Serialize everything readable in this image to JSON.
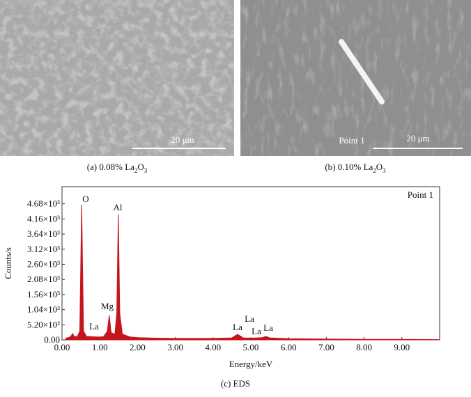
{
  "panel_a": {
    "scale_bar": "20 μm",
    "caption": [
      "(a) 0.08% La",
      "2",
      "O",
      "3"
    ]
  },
  "panel_b": {
    "point_label": "Point 1",
    "scale_bar": "20 μm",
    "caption": [
      "(b) 0.10% La",
      "2",
      "O",
      "3"
    ]
  },
  "chart_data": {
    "type": "area",
    "caption": "(c) EDS",
    "annotation": "Point 1",
    "x_label": "Energy/keV",
    "y_label": "Counts/s",
    "peak_labels": [
      "O",
      "Al",
      "Mg",
      "La",
      "La",
      "La",
      "La",
      "La"
    ],
    "xlim": [
      0,
      10
    ],
    "xticks": [
      {
        "value": 0,
        "label": "0.00"
      },
      {
        "value": 1,
        "label": "1.00"
      },
      {
        "value": 2,
        "label": "2.00"
      },
      {
        "value": 3,
        "label": "3.00"
      },
      {
        "value": 4,
        "label": "4.00"
      },
      {
        "value": 5,
        "label": "5.00"
      },
      {
        "value": 6,
        "label": "6.00"
      },
      {
        "value": 7,
        "label": "7.00"
      },
      {
        "value": 8,
        "label": "8.00"
      },
      {
        "value": 9,
        "label": "9.00"
      }
    ],
    "ylim": [
      0,
      5270
    ],
    "yticks": [
      {
        "value": 0,
        "label": "0.00"
      },
      {
        "value": 520,
        "label": "5.20×10²"
      },
      {
        "value": 1040,
        "label": "1.04×10³"
      },
      {
        "value": 1560,
        "label": "1.56×10³"
      },
      {
        "value": 2080,
        "label": "2.08×10³"
      },
      {
        "value": 2600,
        "label": "2.60×10³"
      },
      {
        "value": 3120,
        "label": "3.12×10³"
      },
      {
        "value": 3640,
        "label": "3.64×10³"
      },
      {
        "value": 4160,
        "label": "4.16×10³"
      },
      {
        "value": 4680,
        "label": "4.68×10³"
      }
    ],
    "x": [
      0.1,
      0.2,
      0.25,
      0.28,
      0.31,
      0.4,
      0.47,
      0.52,
      0.57,
      0.65,
      0.8,
      0.9,
      1.0,
      1.1,
      1.2,
      1.25,
      1.3,
      1.4,
      1.45,
      1.49,
      1.53,
      1.6,
      1.8,
      2.0,
      2.5,
      3.0,
      3.5,
      4.0,
      4.5,
      4.6,
      4.65,
      4.7,
      4.8,
      5.0,
      5.3,
      5.4,
      5.5,
      6.0,
      7.0,
      8.0,
      9.0,
      10.0
    ],
    "series": [
      {
        "name": "Spectrum",
        "color": "#c4161c",
        "values": [
          60,
          90,
          150,
          220,
          140,
          100,
          300,
          4650,
          300,
          120,
          110,
          100,
          100,
          110,
          300,
          840,
          250,
          200,
          900,
          4310,
          900,
          200,
          100,
          80,
          60,
          50,
          50,
          50,
          70,
          150,
          190,
          150,
          70,
          60,
          80,
          120,
          70,
          40,
          30,
          20,
          20,
          10
        ]
      }
    ]
  }
}
